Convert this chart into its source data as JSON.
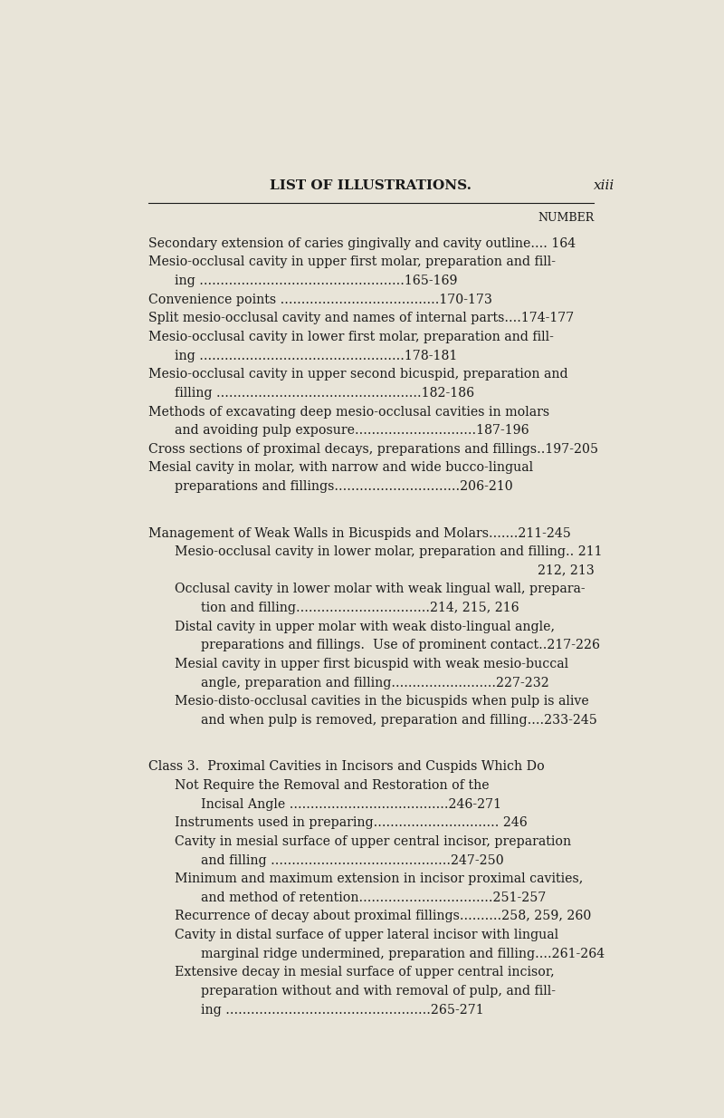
{
  "bg_color": "#e8e4d8",
  "text_color": "#1a1a1a",
  "page_width": 8.0,
  "page_height": 12.34,
  "header_title": "LIST OF ILLUSTRATIONS.",
  "header_page": "xiii",
  "number_label": "NUMBER",
  "entries": [
    {
      "indent": 0,
      "text": "Secondary extension of caries gingivally and cavity outline.... 164",
      "style": "normal"
    },
    {
      "indent": 0,
      "text": "Mesio-occlusal cavity in upper first molar, preparation and fill-",
      "style": "normal"
    },
    {
      "indent": 1,
      "text": "ing .................................................165-169",
      "style": "normal"
    },
    {
      "indent": 0,
      "text": "Convenience points ......................................170-173",
      "style": "normal"
    },
    {
      "indent": 0,
      "text": "Split mesio-occlusal cavity and names of internal parts....174-177",
      "style": "normal"
    },
    {
      "indent": 0,
      "text": "Mesio-occlusal cavity in lower first molar, preparation and fill-",
      "style": "normal"
    },
    {
      "indent": 1,
      "text": "ing .................................................178-181",
      "style": "normal"
    },
    {
      "indent": 0,
      "text": "Mesio-occlusal cavity in upper second bicuspid, preparation and",
      "style": "normal"
    },
    {
      "indent": 1,
      "text": "filling .................................................182-186",
      "style": "normal"
    },
    {
      "indent": 0,
      "text": "Methods of excavating deep mesio-occlusal cavities in molars",
      "style": "normal"
    },
    {
      "indent": 1,
      "text": "and avoiding pulp exposure.............................187-196",
      "style": "normal"
    },
    {
      "indent": 0,
      "text": "Cross sections of proximal decays, preparations and fillings..197-205",
      "style": "normal"
    },
    {
      "indent": 0,
      "text": "Mesial cavity in molar, with narrow and wide bucco-lingual",
      "style": "normal"
    },
    {
      "indent": 1,
      "text": "preparations and fillings..............................206-210",
      "style": "normal"
    },
    {
      "indent": -1,
      "text": "",
      "style": "spacer"
    },
    {
      "indent": 0,
      "text": "Management of Weak Walls in Bicuspids and Molars.......211-245",
      "style": "section"
    },
    {
      "indent": 1,
      "text": "Mesio-occlusal cavity in lower molar, preparation and filling.. 211",
      "style": "normal"
    },
    {
      "indent": 1,
      "text": "212, 213",
      "style": "right"
    },
    {
      "indent": 1,
      "text": "Occlusal cavity in lower molar with weak lingual wall, prepara-",
      "style": "normal"
    },
    {
      "indent": 2,
      "text": "tion and filling................................214, 215, 216",
      "style": "normal"
    },
    {
      "indent": 1,
      "text": "Distal cavity in upper molar with weak disto-lingual angle,",
      "style": "normal"
    },
    {
      "indent": 2,
      "text": "preparations and fillings.  Use of prominent contact..217-226",
      "style": "normal"
    },
    {
      "indent": 1,
      "text": "Mesial cavity in upper first bicuspid with weak mesio-buccal",
      "style": "normal"
    },
    {
      "indent": 2,
      "text": "angle, preparation and filling.........................227-232",
      "style": "normal"
    },
    {
      "indent": 1,
      "text": "Mesio-disto-occlusal cavities in the bicuspids when pulp is alive",
      "style": "normal"
    },
    {
      "indent": 2,
      "text": "and when pulp is removed, preparation and filling....233-245",
      "style": "normal"
    },
    {
      "indent": -1,
      "text": "",
      "style": "spacer"
    },
    {
      "indent": 0,
      "text": "Class 3.  Proximal Cavities in Incisors and Cuspids Which Do",
      "style": "section"
    },
    {
      "indent": 1,
      "text": "Not Require the Removal and Restoration of the",
      "style": "section_cont"
    },
    {
      "indent": 2,
      "text": "Incisal Angle ......................................246-271",
      "style": "section_cont"
    },
    {
      "indent": 1,
      "text": "Instruments used in preparing.............................. 246",
      "style": "normal"
    },
    {
      "indent": 1,
      "text": "Cavity in mesial surface of upper central incisor, preparation",
      "style": "normal"
    },
    {
      "indent": 2,
      "text": "and filling ...........................................247-250",
      "style": "normal"
    },
    {
      "indent": 1,
      "text": "Minimum and maximum extension in incisor proximal cavities,",
      "style": "normal"
    },
    {
      "indent": 2,
      "text": "and method of retention................................251-257",
      "style": "normal"
    },
    {
      "indent": 1,
      "text": "Recurrence of decay about proximal fillings..........258, 259, 260",
      "style": "normal"
    },
    {
      "indent": 1,
      "text": "Cavity in distal surface of upper lateral incisor with lingual",
      "style": "normal"
    },
    {
      "indent": 2,
      "text": "marginal ridge undermined, preparation and filling....261-264",
      "style": "normal"
    },
    {
      "indent": 1,
      "text": "Extensive decay in mesial surface of upper central incisor,",
      "style": "normal"
    },
    {
      "indent": 2,
      "text": "preparation without and with removal of pulp, and fill-",
      "style": "normal"
    },
    {
      "indent": 2,
      "text": "ing .................................................265-271",
      "style": "normal"
    }
  ]
}
